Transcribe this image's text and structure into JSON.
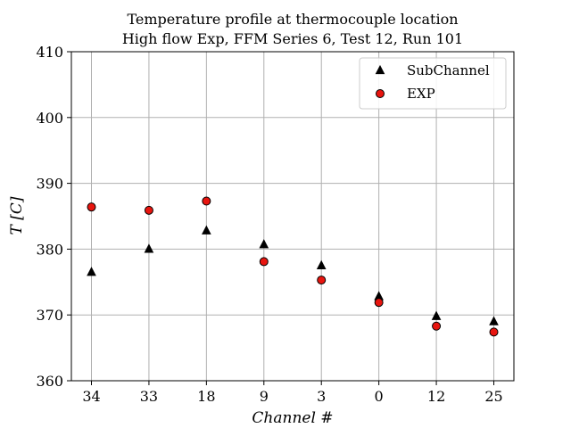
{
  "chart_data": {
    "type": "scatter",
    "title": "Temperature profile at thermocouple location",
    "subtitle": "High flow Exp, FFM Series 6, Test 12, Run 101",
    "xlabel": "Channel #",
    "ylabel": "T [C]",
    "categories": [
      "34",
      "33",
      "18",
      "9",
      "3",
      "0",
      "12",
      "25"
    ],
    "ylim": [
      360,
      410
    ],
    "yticks": [
      360,
      370,
      380,
      390,
      400,
      410
    ],
    "grid": true,
    "legend_position": "top-right",
    "series": [
      {
        "name": "SubChannel",
        "marker": "triangle",
        "color": "#000000",
        "values": [
          376.5,
          380.0,
          382.8,
          380.7,
          377.5,
          372.8,
          369.8,
          369.0
        ]
      },
      {
        "name": "EXP",
        "marker": "circle",
        "color": "#e8150f",
        "values": [
          386.4,
          385.9,
          387.3,
          378.1,
          375.3,
          371.9,
          368.3,
          367.4
        ]
      }
    ]
  }
}
